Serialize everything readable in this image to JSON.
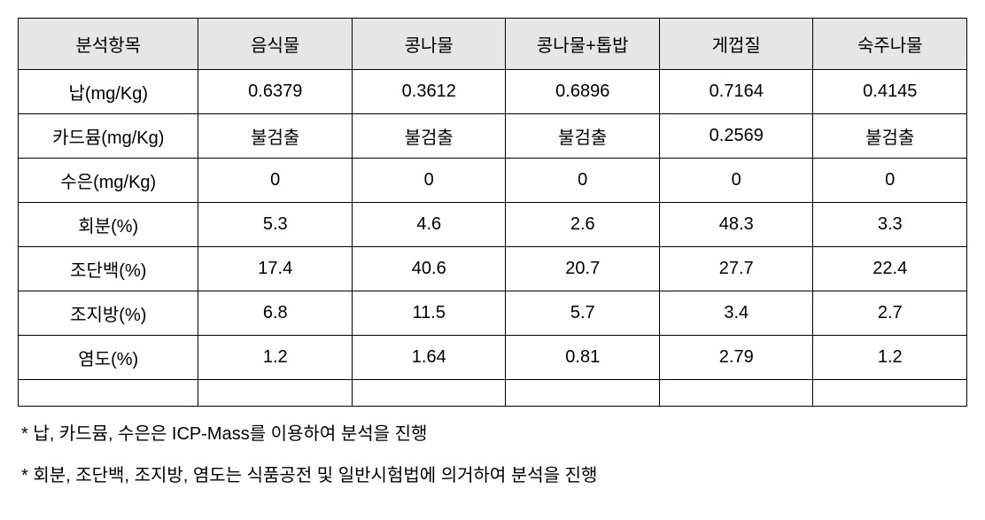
{
  "table": {
    "columns": [
      "분석항목",
      "음식물",
      "콩나물",
      "콩나물+톱밥",
      "게껍질",
      "숙주나물"
    ],
    "rows": [
      [
        "납(mg/Kg)",
        "0.6379",
        "0.3612",
        "0.6896",
        "0.7164",
        "0.4145"
      ],
      [
        "카드뮴(mg/Kg)",
        "불검출",
        "불검출",
        "불검출",
        "0.2569",
        "불검출"
      ],
      [
        "수은(mg/Kg)",
        "0",
        "0",
        "0",
        "0",
        "0"
      ],
      [
        "회분(%)",
        "5.3",
        "4.6",
        "2.6",
        "48.3",
        "3.3"
      ],
      [
        "조단백(%)",
        "17.4",
        "40.6",
        "20.7",
        "27.7",
        "22.4"
      ],
      [
        "조지방(%)",
        "6.8",
        "11.5",
        "5.7",
        "3.4",
        "2.7"
      ],
      [
        "염도(%)",
        "1.2",
        "1.64",
        "0.81",
        "2.79",
        "1.2"
      ]
    ],
    "header_bg_color": "#e6e6e6",
    "border_color": "#000000",
    "cell_fontsize": 20,
    "text_color": "#000000"
  },
  "footnotes": {
    "note1": "* 납, 카드뮴, 수은은 ICP-Mass를 이용하여 분석을 진행",
    "note2": "* 회분, 조단백, 조지방, 염도는 식품공전 및 일반시험법에 의거하여 분석을 진행"
  }
}
